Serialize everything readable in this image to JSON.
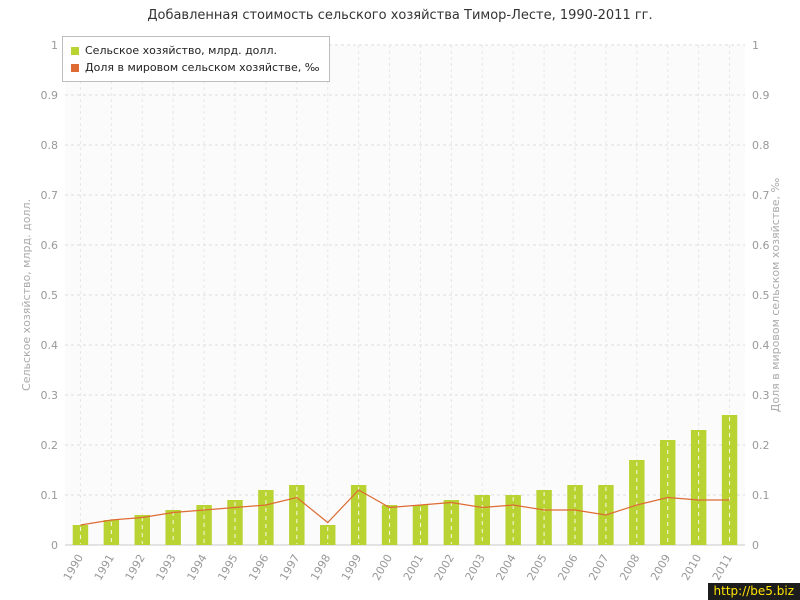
{
  "title": "Добавленная стоимость сельского хозяйства Тимор-Лесте, 1990-2011 гг.",
  "watermark": "http://be5.biz",
  "chart_data": {
    "type": "bar",
    "categories": [
      "1990",
      "1991",
      "1992",
      "1993",
      "1994",
      "1995",
      "1996",
      "1997",
      "1998",
      "1999",
      "2000",
      "2001",
      "2002",
      "2003",
      "2004",
      "2005",
      "2006",
      "2007",
      "2008",
      "2009",
      "2010",
      "2011"
    ],
    "series": [
      {
        "name": "Сельское хозяйство, млрд. долл.",
        "type": "bar",
        "color": "#b9d333",
        "values": [
          0.04,
          0.05,
          0.06,
          0.07,
          0.08,
          0.09,
          0.11,
          0.12,
          0.04,
          0.12,
          0.08,
          0.08,
          0.09,
          0.1,
          0.1,
          0.11,
          0.12,
          0.12,
          0.17,
          0.21,
          0.23,
          0.26
        ]
      },
      {
        "name": "Доля в мировом сельском хозяйстве, ‰",
        "type": "line",
        "color": "#dd6b33",
        "values": [
          0.04,
          0.05,
          0.055,
          0.065,
          0.07,
          0.075,
          0.08,
          0.095,
          0.045,
          0.11,
          0.075,
          0.08,
          0.085,
          0.075,
          0.08,
          0.07,
          0.07,
          0.06,
          0.08,
          0.095,
          0.09,
          0.09
        ]
      }
    ],
    "ylabel_left": "Сельское хозяйство, млрд. долл.",
    "ylabel_right": "Доля в мировом сельском хозяйстве, ‰",
    "ylim": [
      0,
      1
    ],
    "ytick_step": 0.1,
    "grid": true,
    "legend_position": "top-left",
    "colors": {
      "grid": "#dcdcdc",
      "axis": "#c8c8c8",
      "tick_label": "#999999",
      "axis_label": "#aaaaaa",
      "plot_bg": "#fbfbfb"
    }
  }
}
